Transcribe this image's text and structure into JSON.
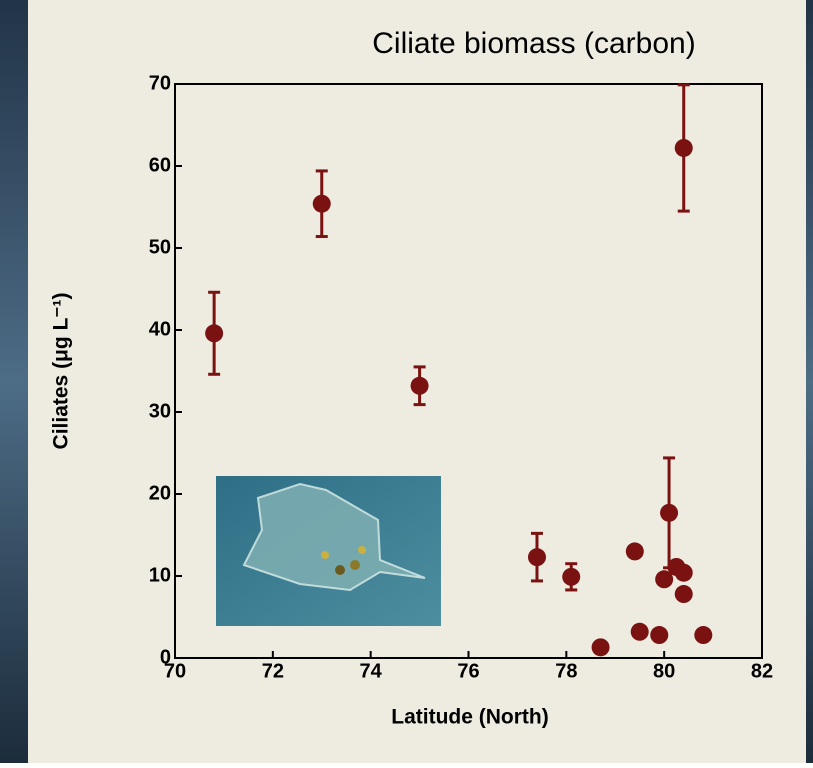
{
  "chart_data": {
    "type": "scatter",
    "title": "Ciliate biomass (carbon)",
    "xlabel": "Latitude (North)",
    "ylabel": "Ciliates (μg L⁻¹)",
    "x": [
      70.8,
      73.0,
      75.0,
      80.4,
      77.4,
      78.1,
      78.7,
      79.4,
      79.5,
      79.9,
      80.0,
      80.1,
      80.25,
      80.4,
      80.4,
      80.8
    ],
    "values": [
      39.6,
      55.4,
      33.2,
      62.2,
      12.3,
      9.9,
      1.3,
      13.0,
      3.2,
      2.8,
      9.6,
      17.7,
      11.1,
      10.4,
      7.8,
      2.8
    ],
    "errors": [
      5.0,
      4.0,
      2.3,
      7.7,
      2.9,
      1.6,
      null,
      null,
      null,
      null,
      null,
      6.7,
      null,
      null,
      null,
      null
    ],
    "color": "#7a1212",
    "xlim": [
      70,
      82
    ],
    "xticks": [
      70,
      72,
      74,
      76,
      78,
      80,
      82
    ],
    "ylim": [
      0,
      70
    ],
    "yticks": [
      0,
      10,
      20,
      30,
      40,
      50,
      60,
      70
    ]
  }
}
